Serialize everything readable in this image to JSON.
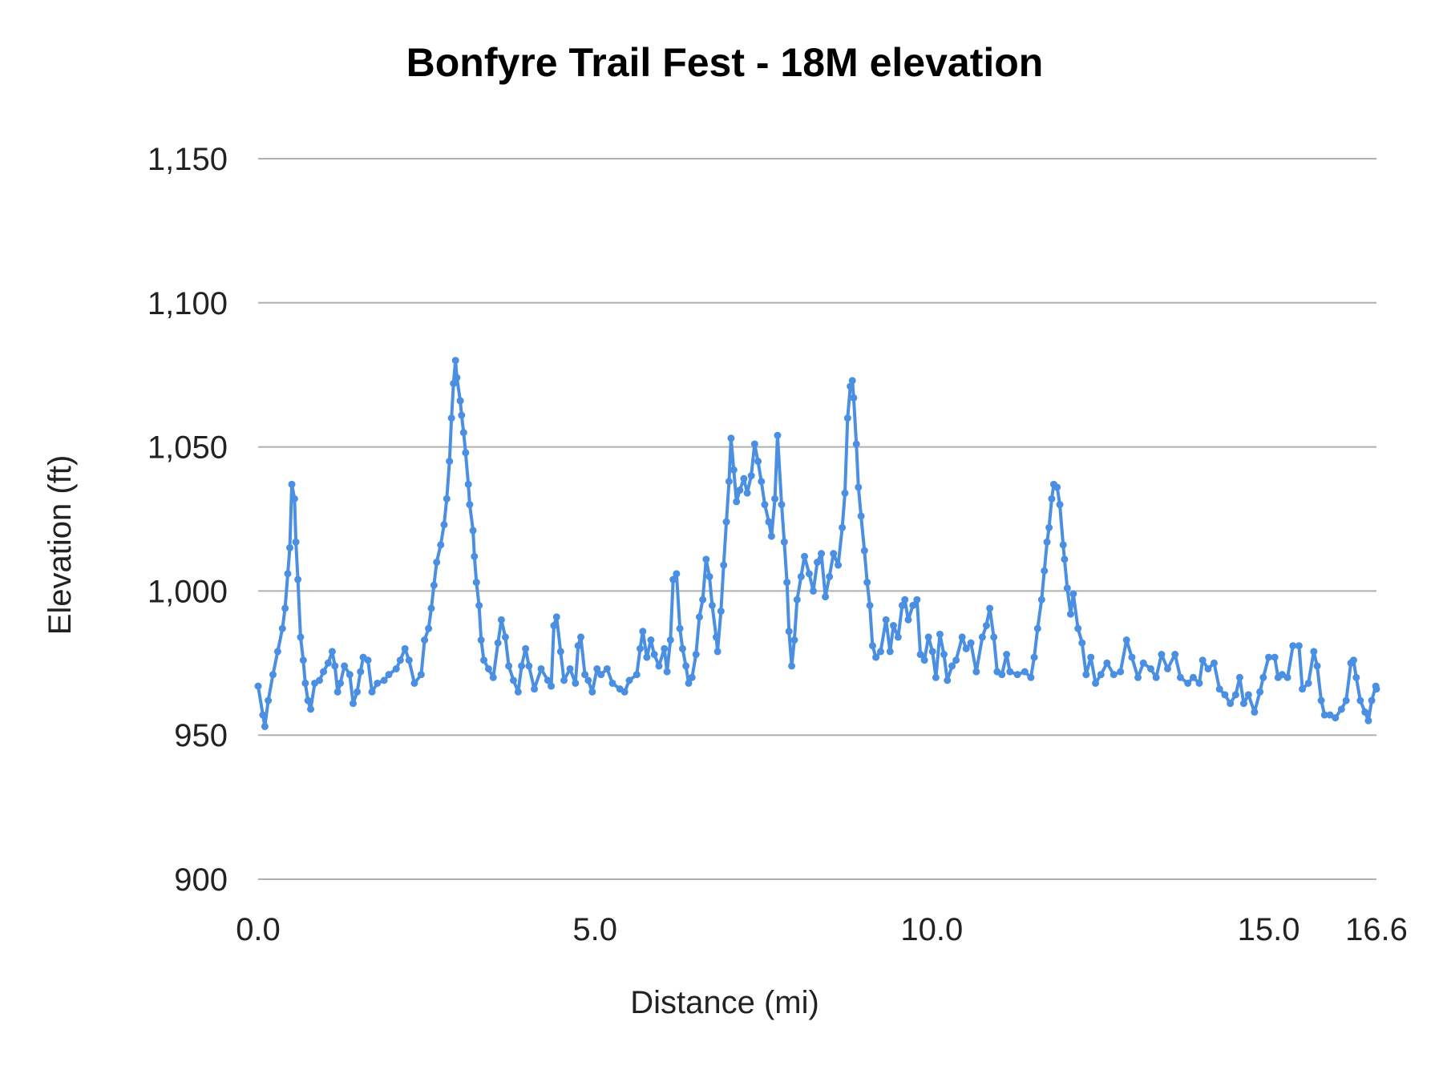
{
  "chart_data": {
    "type": "line",
    "title": "Bonfyre Trail Fest - 18M elevation",
    "xlabel": "Distance (mi)",
    "ylabel": "Elevation (ft)",
    "xlim": [
      0,
      16.6
    ],
    "ylim": [
      900,
      1150
    ],
    "xticks": [
      0,
      5,
      10,
      15,
      16.6
    ],
    "xtick_labels": [
      "0.0",
      "5.0",
      "10.0",
      "15.0",
      "16.6"
    ],
    "yticks": [
      900,
      950,
      1000,
      1050,
      1100,
      1150
    ],
    "ytick_labels": [
      "900",
      "950",
      "1,000",
      "1,050",
      "1,100",
      "1,150"
    ],
    "grid": "horizontal",
    "legend": "none",
    "markers": true,
    "color": "#4a8fe2",
    "x": [
      0,
      0.07,
      0.1,
      0.15,
      0.22,
      0.29,
      0.36,
      0.4,
      0.44,
      0.47,
      0.5,
      0.54,
      0.56,
      0.59,
      0.63,
      0.67,
      0.7,
      0.74,
      0.78,
      0.84,
      0.91,
      0.97,
      1.04,
      1.1,
      1.14,
      1.18,
      1.22,
      1.28,
      1.36,
      1.41,
      1.47,
      1.52,
      1.56,
      1.63,
      1.69,
      1.77,
      1.87,
      1.94,
      2.05,
      2.11,
      2.18,
      2.24,
      2.32,
      2.42,
      2.47,
      2.53,
      2.57,
      2.61,
      2.65,
      2.71,
      2.76,
      2.8,
      2.84,
      2.87,
      2.9,
      2.93,
      2.95,
      3.0,
      3.02,
      3.05,
      3.08,
      3.12,
      3.14,
      3.19,
      3.21,
      3.24,
      3.28,
      3.31,
      3.35,
      3.42,
      3.49,
      3.56,
      3.61,
      3.67,
      3.72,
      3.79,
      3.86,
      3.91,
      3.97,
      4.02,
      4.1,
      4.2,
      4.3,
      4.35,
      4.39,
      4.43,
      4.49,
      4.54,
      4.63,
      4.71,
      4.75,
      4.79,
      4.85,
      4.9,
      4.96,
      5.03,
      5.09,
      5.18,
      5.26,
      5.37,
      5.44,
      5.51,
      5.62,
      5.67,
      5.71,
      5.77,
      5.83,
      5.88,
      5.95,
      6.03,
      6.07,
      6.12,
      6.16,
      6.21,
      6.26,
      6.3,
      6.35,
      6.39,
      6.44,
      6.5,
      6.55,
      6.6,
      6.65,
      6.7,
      6.74,
      6.8,
      6.82,
      6.87,
      6.91,
      6.95,
      6.99,
      7.02,
      7.06,
      7.1,
      7.15,
      7.21,
      7.26,
      7.32,
      7.37,
      7.42,
      7.47,
      7.52,
      7.58,
      7.62,
      7.67,
      7.71,
      7.77,
      7.81,
      7.85,
      7.88,
      7.92,
      7.96,
      8.0,
      8.06,
      8.11,
      8.18,
      8.24,
      8.3,
      8.36,
      8.42,
      8.48,
      8.54,
      8.61,
      8.67,
      8.71,
      8.75,
      8.79,
      8.82,
      8.84,
      8.88,
      8.91,
      8.95,
      9.0,
      9.04,
      9.08,
      9.12,
      9.17,
      9.24,
      9.32,
      9.38,
      9.43,
      9.5,
      9.56,
      9.6,
      9.65,
      9.72,
      9.78,
      9.83,
      9.89,
      9.95,
      10.01,
      10.06,
      10.12,
      10.18,
      10.23,
      10.3,
      10.36,
      10.45,
      10.51,
      10.58,
      10.66,
      10.75,
      10.81,
      10.86,
      10.92,
      10.97,
      11.04,
      11.11,
      11.16,
      11.27,
      11.38,
      11.47,
      11.52,
      11.57,
      11.63,
      11.67,
      11.71,
      11.74,
      11.78,
      11.81,
      11.86,
      11.9,
      11.95,
      11.97,
      12.01,
      12.06,
      12.1,
      12.17,
      12.23,
      12.29,
      12.36,
      12.43,
      12.51,
      12.6,
      12.7,
      12.8,
      12.89,
      12.97,
      13.06,
      13.14,
      13.25,
      13.33,
      13.41,
      13.5,
      13.61,
      13.69,
      13.8,
      13.88,
      13.97,
      14.02,
      14.1,
      14.19,
      14.27,
      14.35,
      14.43,
      14.51,
      14.57,
      14.63,
      14.7,
      14.79,
      14.87,
      14.92,
      15.0,
      15.09,
      15.14,
      15.2,
      15.28,
      15.36,
      15.45,
      15.5,
      15.59,
      15.67,
      15.72,
      15.78,
      15.83,
      15.91,
      15.99,
      16.08,
      16.15,
      16.22,
      16.26,
      16.3,
      16.36,
      16.43,
      16.48,
      16.53,
      16.59,
      16.6
    ],
    "y": [
      967,
      957,
      953,
      962,
      971,
      979,
      987,
      994,
      1006,
      1015,
      1037,
      1032,
      1017,
      1004,
      984,
      976,
      968,
      962,
      959,
      968,
      969,
      972,
      975,
      979,
      974,
      965,
      968,
      974,
      971,
      961,
      965,
      972,
      977,
      976,
      965,
      968,
      969,
      971,
      973,
      976,
      980,
      976,
      968,
      971,
      983,
      987,
      994,
      1002,
      1010,
      1016,
      1023,
      1032,
      1045,
      1060,
      1072,
      1080,
      1074,
      1066,
      1061,
      1055,
      1048,
      1037,
      1030,
      1021,
      1012,
      1003,
      995,
      983,
      976,
      973,
      970,
      982,
      990,
      984,
      974,
      969,
      965,
      974,
      980,
      974,
      966,
      973,
      969,
      967,
      988,
      991,
      979,
      969,
      973,
      968,
      981,
      984,
      971,
      969,
      965,
      973,
      971,
      973,
      968,
      966,
      965,
      969,
      971,
      980,
      986,
      977,
      983,
      978,
      974,
      980,
      972,
      983,
      1004,
      1006,
      987,
      980,
      974,
      968,
      970,
      978,
      991,
      997,
      1011,
      1005,
      995,
      984,
      979,
      993,
      1009,
      1024,
      1038,
      1053,
      1042,
      1031,
      1035,
      1039,
      1034,
      1040,
      1051,
      1045,
      1038,
      1030,
      1024,
      1019,
      1032,
      1054,
      1030,
      1017,
      1003,
      986,
      974,
      983,
      997,
      1005,
      1012,
      1006,
      1000,
      1010,
      1013,
      998,
      1005,
      1013,
      1009,
      1022,
      1034,
      1060,
      1071,
      1073,
      1067,
      1051,
      1036,
      1026,
      1014,
      1003,
      995,
      981,
      977,
      979,
      990,
      979,
      988,
      984,
      995,
      997,
      990,
      995,
      997,
      978,
      976,
      984,
      979,
      970,
      985,
      978,
      969,
      974,
      976,
      984,
      980,
      982,
      972,
      984,
      988,
      994,
      984,
      972,
      971,
      978,
      972,
      971,
      972,
      970,
      977,
      987,
      997,
      1007,
      1017,
      1022,
      1032,
      1037,
      1036,
      1030,
      1016,
      1011,
      1001,
      992,
      999,
      987,
      982,
      971,
      977,
      968,
      971,
      975,
      971,
      972,
      983,
      977,
      970,
      975,
      973,
      970,
      978,
      973,
      978,
      970,
      968,
      970,
      968,
      976,
      973,
      975,
      966,
      964,
      961,
      964,
      970,
      961,
      964,
      958,
      965,
      970,
      977,
      977,
      970,
      971,
      970,
      981,
      981,
      966,
      968,
      979,
      974,
      962,
      957,
      957,
      956,
      959,
      962,
      975,
      976,
      970,
      962,
      958,
      955,
      962,
      967,
      966
    ]
  }
}
